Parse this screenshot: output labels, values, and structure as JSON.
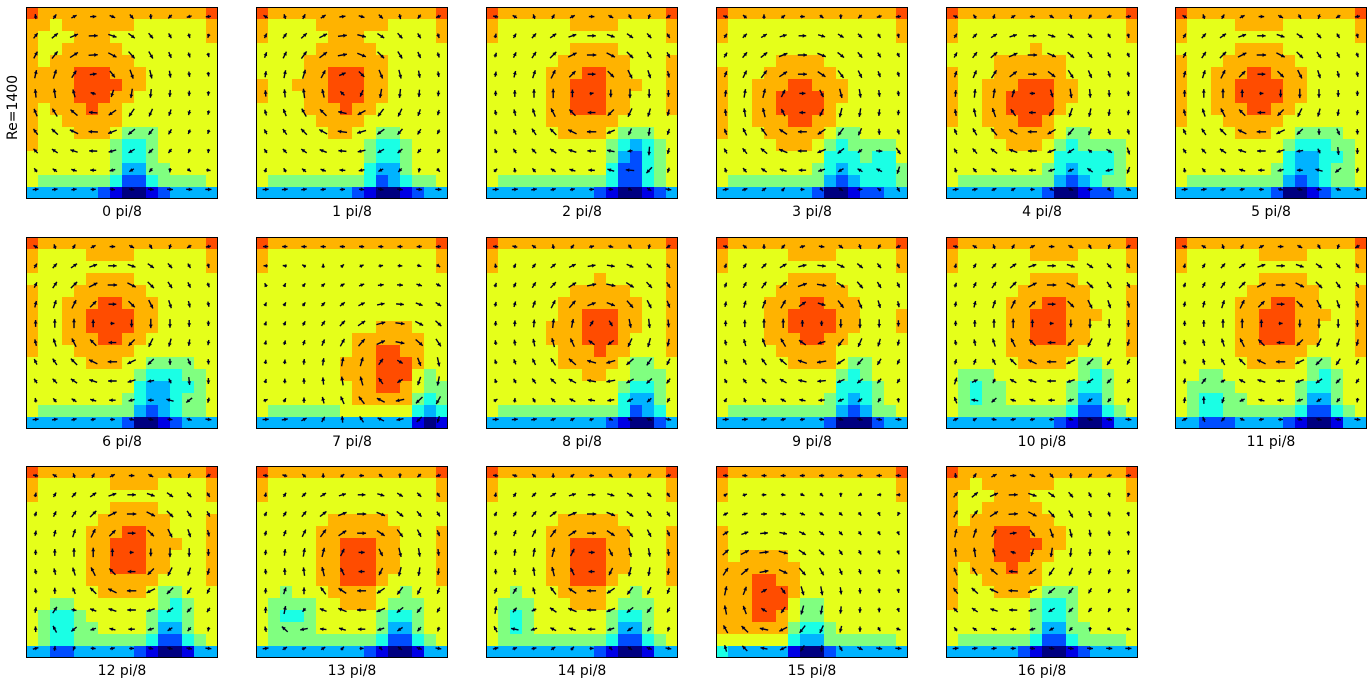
{
  "figure": {
    "row_label": "Re=1400",
    "panel_labels": [
      "0 pi/8",
      "1 pi/8",
      "2 pi/8",
      "3 pi/8",
      "4 pi/8",
      "5 pi/8",
      "6 pi/8",
      "7 pi/8",
      "8 pi/8",
      "9 pi/8",
      "10 pi/8",
      "11 pi/8",
      "12 pi/8",
      "13 pi/8",
      "14 pi/8",
      "15 pi/8",
      "16 pi/8"
    ]
  },
  "chart_data": {
    "type": "heatmap",
    "description": "",
    "colormap": "jet",
    "quiver": true,
    "grid": false,
    "axis_ticks": "none",
    "row_label": "Re=1400",
    "layout": {
      "rows": 3,
      "columns": 6,
      "panels": 17
    },
    "phases": [
      "0 pi/8",
      "1 pi/8",
      "2 pi/8",
      "3 pi/8",
      "4 pi/8",
      "5 pi/8",
      "6 pi/8",
      "7 pi/8",
      "8 pi/8",
      "9 pi/8",
      "10 pi/8",
      "11 pi/8",
      "12 pi/8",
      "13 pi/8",
      "14 pi/8",
      "15 pi/8",
      "16 pi/8"
    ],
    "panels": [
      {
        "label": "0 pi/8",
        "vortex_center": [
          0.36,
          0.58
        ],
        "rotation": "clockwise",
        "secondary_vortex": null
      },
      {
        "label": "1 pi/8",
        "vortex_center": [
          0.48,
          0.58
        ],
        "rotation": "clockwise",
        "secondary_vortex": null
      },
      {
        "label": "2 pi/8",
        "vortex_center": [
          0.55,
          0.55
        ],
        "rotation": "clockwise",
        "secondary_vortex": [
          0.78,
          0.22
        ]
      },
      {
        "label": "3 pi/8",
        "vortex_center": [
          0.45,
          0.5
        ],
        "rotation": "clockwise",
        "secondary_vortex": [
          0.88,
          0.18
        ]
      },
      {
        "label": "4 pi/8",
        "vortex_center": [
          0.45,
          0.52
        ],
        "rotation": "clockwise",
        "secondary_vortex": [
          0.85,
          0.2
        ]
      },
      {
        "label": "5 pi/8",
        "vortex_center": [
          0.45,
          0.55
        ],
        "rotation": "clockwise",
        "secondary_vortex": [
          0.8,
          0.23
        ]
      },
      {
        "label": "6 pi/8",
        "vortex_center": [
          0.45,
          0.55
        ],
        "rotation": "clockwise",
        "secondary_vortex": [
          0.8,
          0.23
        ]
      },
      {
        "label": "7 pi/8",
        "vortex_center": [
          0.72,
          0.3
        ],
        "rotation": "clockwise",
        "secondary_vortex": null
      },
      {
        "label": "8 pi/8",
        "vortex_center": [
          0.6,
          0.52
        ],
        "rotation": "clockwise",
        "secondary_vortex": null
      },
      {
        "label": "9 pi/8",
        "vortex_center": [
          0.52,
          0.55
        ],
        "rotation": "clockwise",
        "secondary_vortex": null
      },
      {
        "label": "10 pi/8",
        "vortex_center": [
          0.55,
          0.55
        ],
        "rotation": "clockwise",
        "secondary_vortex": [
          0.15,
          0.2
        ]
      },
      {
        "label": "11 pi/8",
        "vortex_center": [
          0.55,
          0.55
        ],
        "rotation": "clockwise",
        "secondary_vortex": [
          0.2,
          0.15
        ]
      },
      {
        "label": "12 pi/8",
        "vortex_center": [
          0.55,
          0.55
        ],
        "rotation": "clockwise",
        "secondary_vortex": [
          0.2,
          0.18
        ]
      },
      {
        "label": "13 pi/8",
        "vortex_center": [
          0.55,
          0.5
        ],
        "rotation": "clockwise",
        "secondary_vortex": [
          0.2,
          0.22
        ]
      },
      {
        "label": "14 pi/8",
        "vortex_center": [
          0.55,
          0.5
        ],
        "rotation": "clockwise",
        "secondary_vortex": [
          0.15,
          0.22
        ]
      },
      {
        "label": "15 pi/8",
        "vortex_center": [
          0.28,
          0.3
        ],
        "rotation": "clockwise",
        "secondary_vortex": null
      },
      {
        "label": "16 pi/8",
        "vortex_center": [
          0.36,
          0.58
        ],
        "rotation": "clockwise",
        "secondary_vortex": null
      }
    ]
  }
}
